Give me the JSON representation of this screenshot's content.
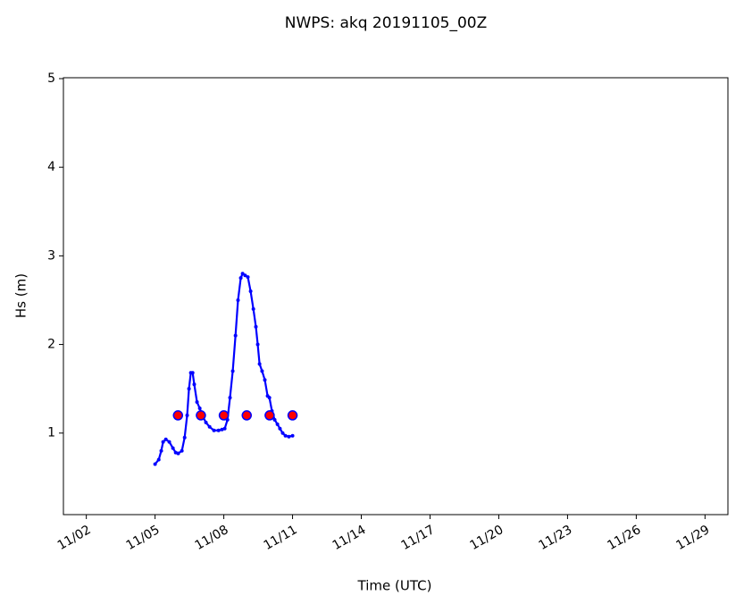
{
  "chart_data": {
    "type": "line",
    "title": "NWPS: akq 20191105_00Z",
    "xlabel": "Time (UTC)",
    "ylabel": "Hs (m)",
    "xlim": [
      1,
      30
    ],
    "xticks": [
      {
        "value": 2,
        "label": "11/02"
      },
      {
        "value": 5,
        "label": "11/05"
      },
      {
        "value": 8,
        "label": "11/08"
      },
      {
        "value": 11,
        "label": "11/11"
      },
      {
        "value": 14,
        "label": "11/14"
      },
      {
        "value": 17,
        "label": "11/17"
      },
      {
        "value": 20,
        "label": "11/20"
      },
      {
        "value": 23,
        "label": "11/23"
      },
      {
        "value": 26,
        "label": "11/26"
      },
      {
        "value": 29,
        "label": "11/29"
      }
    ],
    "ylim": [
      0.08,
      5.01
    ],
    "yticks": [
      1,
      2,
      3,
      4,
      5
    ],
    "series": [
      {
        "color": "#0000ff",
        "style": "line",
        "x": [
          5.0,
          5.16,
          5.27,
          5.35,
          5.47,
          5.62,
          5.78,
          5.9,
          6.01,
          6.17,
          6.29,
          6.4,
          6.48,
          6.56,
          6.64,
          6.71,
          6.83,
          6.95,
          7.06,
          7.22,
          7.38,
          7.57,
          7.77,
          7.92,
          8.04,
          8.16,
          8.27,
          8.39,
          8.51,
          8.62,
          8.74,
          8.82,
          8.93,
          9.05,
          9.17,
          9.29,
          9.4,
          9.48,
          9.56,
          9.67,
          9.79,
          9.91,
          9.99,
          10.1,
          10.22,
          10.34,
          10.45,
          10.57,
          10.69,
          10.84,
          11.0
        ],
        "values": [
          0.65,
          0.7,
          0.8,
          0.9,
          0.93,
          0.9,
          0.83,
          0.78,
          0.77,
          0.8,
          0.95,
          1.2,
          1.5,
          1.68,
          1.68,
          1.55,
          1.35,
          1.28,
          1.2,
          1.12,
          1.07,
          1.03,
          1.03,
          1.04,
          1.05,
          1.15,
          1.4,
          1.7,
          2.1,
          2.5,
          2.75,
          2.8,
          2.78,
          2.76,
          2.6,
          2.4,
          2.2,
          2.0,
          1.78,
          1.7,
          1.6,
          1.42,
          1.4,
          1.25,
          1.15,
          1.1,
          1.05,
          1.0,
          0.97,
          0.96,
          0.97
        ]
      },
      {
        "color": "#ff0000",
        "edgecolor": "#0000ff",
        "style": "markers",
        "x": [
          6,
          7,
          8,
          9,
          10,
          11
        ],
        "values": [
          1.2,
          1.2,
          1.2,
          1.2,
          1.2,
          1.2
        ]
      }
    ]
  }
}
